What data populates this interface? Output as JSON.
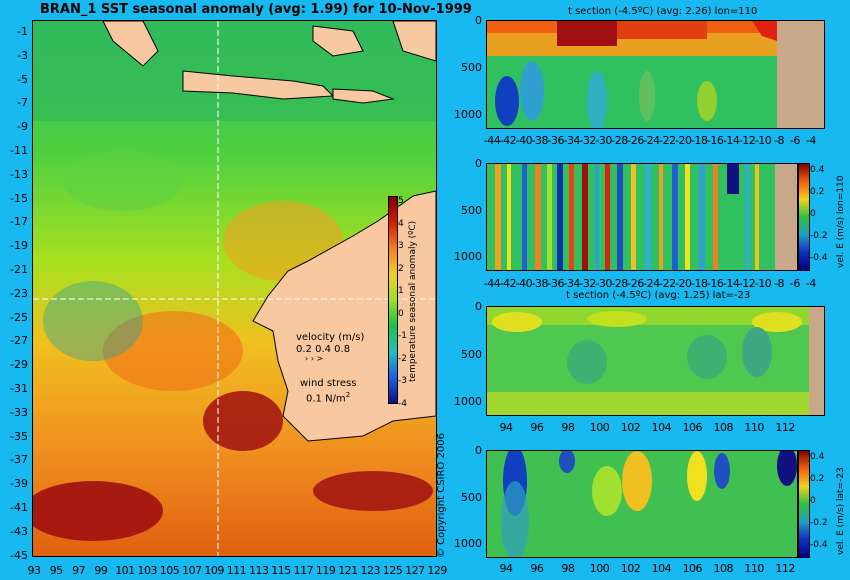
{
  "map": {
    "title": "BRAN_1  SST seasonal anomaly (avg: 1.99) for 10-Nov-1999",
    "lat_ticks": [
      "-1",
      "-3",
      "-5",
      "-7",
      "-9",
      "-11",
      "-13",
      "-15",
      "-17",
      "-19",
      "-21",
      "-23",
      "-25",
      "-27",
      "-29",
      "-31",
      "-33",
      "-35",
      "-37",
      "-39",
      "-41",
      "-43",
      "-45"
    ],
    "lon_ticks": [
      "93",
      "95",
      "97",
      "99",
      "101",
      "103",
      "105",
      "107",
      "109",
      "111",
      "113",
      "115",
      "117",
      "119",
      "121",
      "123",
      "125",
      "127",
      "129"
    ],
    "colorbar_label": "temperature seasonal anomaly (ºC)",
    "colorbar_ticks": [
      "5",
      "4",
      "3",
      "2",
      "1",
      "0",
      "-1",
      "-2",
      "-3",
      "-4"
    ],
    "velocity_label": "velocity (m/s)",
    "velocity_scale": "0.2 0.4 0.8",
    "wind_label": "wind stress",
    "wind_scale": "0.1 N/m",
    "wind_scale_sup": "2",
    "copyright": "© Copyright CSIRO 2006",
    "colors": {
      "land": "#f8c8a0",
      "background": "#18b8f0"
    }
  },
  "panels": {
    "p1": {
      "title": "t section (-4.5ºC) (avg: 2.26) lon=110",
      "x_ticks": [
        "-44",
        "-42",
        "-40",
        "-38",
        "-36",
        "-34",
        "-32",
        "-30",
        "-28",
        "-26",
        "-24",
        "-22",
        "-20",
        "-18",
        "-16",
        "-14",
        "-12",
        "-10",
        "-8",
        "-6",
        "-4"
      ],
      "y_ticks": [
        "0",
        "500",
        "1000"
      ]
    },
    "p2": {
      "title": "",
      "x_ticks": [
        "-44",
        "-42",
        "-40",
        "-38",
        "-36",
        "-34",
        "-32",
        "-30",
        "-28",
        "-26",
        "-24",
        "-22",
        "-20",
        "-18",
        "-16",
        "-14",
        "-12",
        "-10",
        "-8",
        "-6",
        "-4"
      ],
      "y_ticks": [
        "0",
        "500",
        "1000"
      ],
      "cbar_ticks": [
        "0.4",
        "0.2",
        "0",
        "-0.2",
        "-0.4"
      ],
      "side_label": "vel. E (m/s) lon=110"
    },
    "p3": {
      "title": "t section (-4.5ºC) (avg: 1.25) lat=-23",
      "x_ticks": [
        "94",
        "96",
        "98",
        "100",
        "102",
        "104",
        "106",
        "108",
        "110",
        "112"
      ],
      "y_ticks": [
        "0",
        "500",
        "1000"
      ]
    },
    "p4": {
      "title": "",
      "x_ticks": [
        "94",
        "96",
        "98",
        "100",
        "102",
        "104",
        "106",
        "108",
        "110",
        "112"
      ],
      "y_ticks": [
        "0",
        "500",
        "1000"
      ],
      "cbar_ticks": [
        "0.4",
        "0.2",
        "0",
        "-0.2",
        "-0.4"
      ],
      "side_label": "vel. E (m/s) lat=-23"
    }
  }
}
